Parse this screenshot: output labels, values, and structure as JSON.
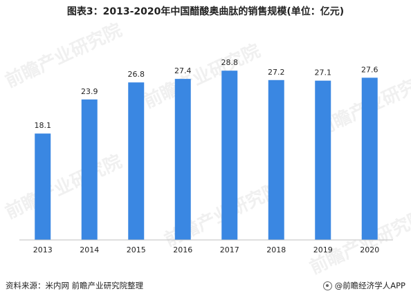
{
  "title": "图表3：2013-2020年中国醋酸奥曲肽的销售规模(单位：亿元)",
  "source": "资料来源：米内网 前瞻产业研究院整理",
  "brand": "@前瞻经济学人APP",
  "watermark": "前瞻产业研究院",
  "colors": {
    "bar": "#3a87e2",
    "axis": "#bfbfbf"
  },
  "chart_data": {
    "type": "bar",
    "categories": [
      "2013",
      "2014",
      "2015",
      "2016",
      "2017",
      "2018",
      "2019",
      "2020"
    ],
    "values": [
      18.1,
      23.9,
      26.8,
      27.4,
      28.8,
      27.2,
      27.1,
      27.6
    ],
    "value_labels": [
      "18.1",
      "23.9",
      "26.8",
      "27.4",
      "28.8",
      "27.2",
      "27.1",
      "27.6"
    ],
    "ylim": [
      0,
      32
    ],
    "grid": false,
    "legend": "none"
  }
}
